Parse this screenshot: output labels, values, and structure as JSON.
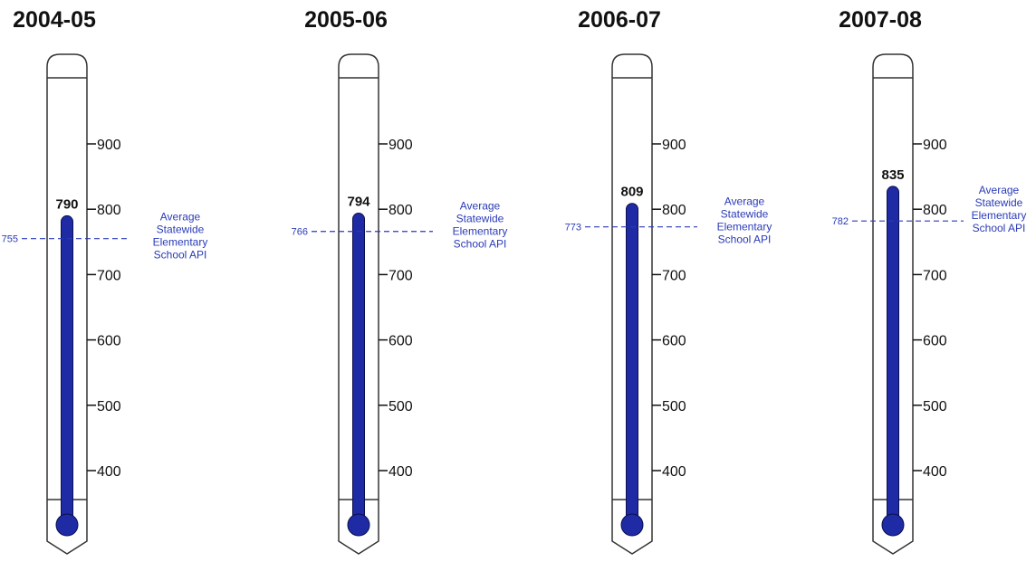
{
  "colors": {
    "mercury": "#1f2aa5",
    "mercury_outline": "#0a0f4f",
    "reference": "#2a3bb8",
    "outline": "#333333"
  },
  "chart_data": {
    "type": "bar",
    "title": "",
    "ylim": [
      340,
      1000
    ],
    "y_ticks": [
      400,
      500,
      600,
      700,
      800,
      900
    ],
    "reference_label": [
      "Average",
      "Statewide",
      "Elementary",
      "School API"
    ],
    "panels": [
      {
        "year": "2004-05",
        "value": 790,
        "statewide_average": 755
      },
      {
        "year": "2005-06",
        "value": 794,
        "statewide_average": 766
      },
      {
        "year": "2006-07",
        "value": 809,
        "statewide_average": 773
      },
      {
        "year": "2007-08",
        "value": 835,
        "statewide_average": 782
      }
    ]
  }
}
